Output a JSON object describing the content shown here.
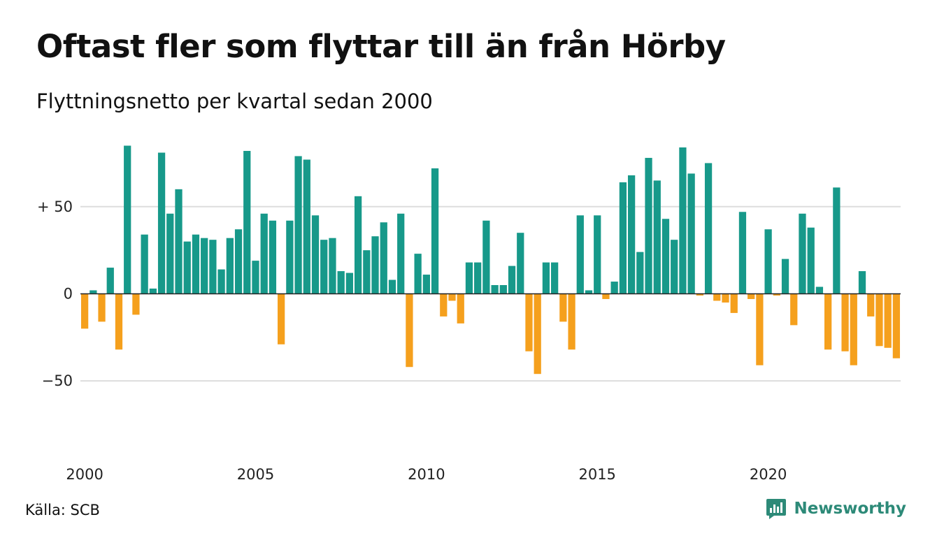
{
  "title": "Oftast fler som flyttar till än från Hörby",
  "subtitle": "Flyttningsnetto per kvartal sedan 2000",
  "source": "Källa: SCB",
  "brand": {
    "name": "Newsworthy",
    "icon": "newsworthy-logo-icon"
  },
  "colors": {
    "positive": "#17998a",
    "negative": "#f5a01d",
    "grid": "#dddddd",
    "baseline": "#222222"
  },
  "chart_data": {
    "type": "bar",
    "title": "Oftast fler som flyttar till än från Hörby",
    "subtitle": "Flyttningsnetto per kvartal sedan 2000",
    "xlabel": "",
    "ylabel": "",
    "start_year": 2000,
    "periods_per_year": 4,
    "ylim": [
      -80,
      86
    ],
    "y_ticks": [
      {
        "value": 50,
        "label": "+ 50"
      },
      {
        "value": 0,
        "label": "0"
      },
      {
        "value": -50,
        "label": "−50"
      }
    ],
    "x_ticks": [
      {
        "year": 2000,
        "label": "2000"
      },
      {
        "year": 2005,
        "label": "2005"
      },
      {
        "year": 2010,
        "label": "2010"
      },
      {
        "year": 2015,
        "label": "2015"
      },
      {
        "year": 2020,
        "label": "2020"
      }
    ],
    "grid": true,
    "legend": "none",
    "values": [
      -20,
      2,
      -16,
      15,
      -32,
      85,
      -12,
      34,
      3,
      81,
      46,
      60,
      30,
      34,
      32,
      31,
      14,
      32,
      37,
      82,
      19,
      46,
      42,
      -29,
      42,
      79,
      77,
      45,
      31,
      32,
      13,
      12,
      56,
      25,
      33,
      41,
      8,
      46,
      -42,
      23,
      11,
      72,
      -13,
      -4,
      -17,
      18,
      18,
      42,
      5,
      5,
      16,
      35,
      -33,
      -46,
      18,
      18,
      -16,
      -32,
      45,
      2,
      45,
      -3,
      7,
      64,
      68,
      24,
      78,
      65,
      43,
      31,
      84,
      69,
      -1,
      75,
      -4,
      -5,
      -11,
      47,
      -3,
      -41,
      37,
      -1,
      20,
      -18,
      46,
      38,
      4,
      -32,
      61,
      -33,
      -41,
      13,
      -13,
      -30,
      -31,
      -37
    ]
  }
}
